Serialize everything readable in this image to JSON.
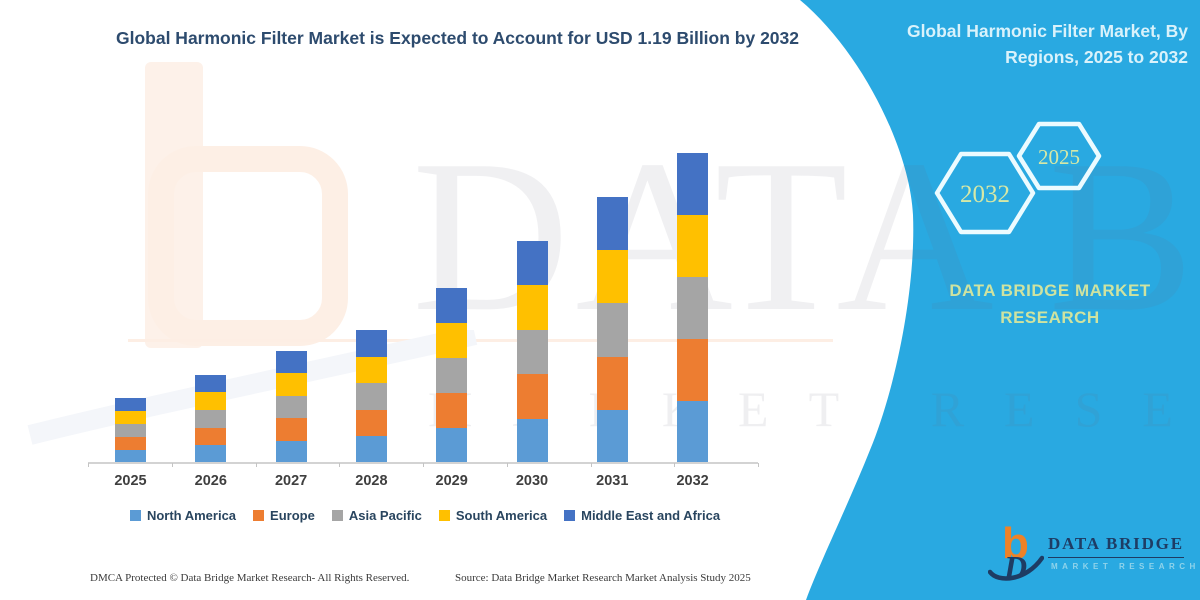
{
  "header": {
    "title": "Global Harmonic Filter Market is Expected to Account for USD 1.19 Billion by 2032"
  },
  "side_panel": {
    "title": "Global Harmonic Filter Market, By Regions, 2025 to 2032",
    "hexagon_back_label": "2032",
    "hexagon_front_label": "2025",
    "brand_line1": "DATA BRIDGE MARKET",
    "brand_line2": "RESEARCH",
    "bg_color": "#29a9e1"
  },
  "chart_data": {
    "type": "bar",
    "stacked": true,
    "title": "Global Harmonic Filter Market is Expected to Account for USD 1.19 Billion by 2032",
    "unit": "USD Billion",
    "categories": [
      "2025",
      "2026",
      "2027",
      "2028",
      "2029",
      "2030",
      "2031",
      "2032"
    ],
    "series": [
      {
        "name": "North America",
        "color": "#5B9BD5",
        "values": [
          0.05,
          0.068,
          0.086,
          0.102,
          0.134,
          0.17,
          0.204,
          0.238
        ]
      },
      {
        "name": "Europe",
        "color": "#ED7D31",
        "values": [
          0.05,
          0.068,
          0.086,
          0.102,
          0.134,
          0.17,
          0.204,
          0.238
        ]
      },
      {
        "name": "Asia Pacific",
        "color": "#A5A5A5",
        "values": [
          0.05,
          0.068,
          0.086,
          0.102,
          0.134,
          0.17,
          0.204,
          0.238
        ]
      },
      {
        "name": "South America",
        "color": "#FFC000",
        "values": [
          0.05,
          0.068,
          0.086,
          0.102,
          0.134,
          0.17,
          0.204,
          0.238
        ]
      },
      {
        "name": "Middle East and Africa",
        "color": "#4472C4",
        "values": [
          0.05,
          0.068,
          0.086,
          0.102,
          0.134,
          0.17,
          0.204,
          0.238
        ]
      }
    ],
    "totals": [
      0.25,
      0.34,
      0.43,
      0.51,
      0.67,
      0.85,
      1.02,
      1.19
    ],
    "ylim": [
      0,
      1.25
    ],
    "grid": false,
    "legend_position": "bottom",
    "xlabel": "",
    "ylabel": ""
  },
  "watermark": {
    "line1": "DATA BRIDGE",
    "line2": "MARKET RESEARCH"
  },
  "logo": {
    "monogram_b": "b",
    "monogram_d": "D",
    "title": "DATA BRIDGE",
    "subtitle": "MARKET RESEARCH"
  },
  "footer": {
    "left": "DMCA Protected © Data Bridge Market Research-  All Rights Reserved.",
    "right": "Source: Data Bridge Market Research  Market Analysis Study 2025"
  }
}
